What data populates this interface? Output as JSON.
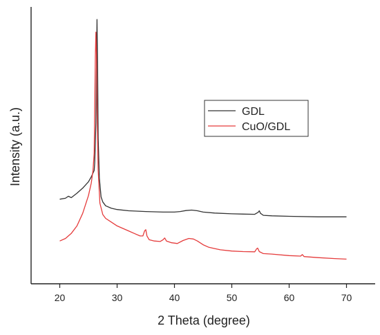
{
  "chart_data": {
    "type": "line",
    "title": "",
    "xlabel": "2 Theta (degree)",
    "ylabel": "Intensity (a.u.)",
    "xlim": [
      15,
      75
    ],
    "ylim": [
      0,
      1.1
    ],
    "x_ticks": [
      20,
      30,
      40,
      50,
      60,
      70
    ],
    "x_tick_labels": [
      "20",
      "30",
      "40",
      "50",
      "60",
      "70"
    ],
    "y_tick_labels_shown": false,
    "grid": false,
    "legend_position": "upper-right (inside plot)",
    "series": [
      {
        "name": "GDL",
        "color": "#333333",
        "points": [
          [
            20.0,
            0.336
          ],
          [
            21.0,
            0.34
          ],
          [
            21.5,
            0.348
          ],
          [
            22.0,
            0.342
          ],
          [
            23.0,
            0.36
          ],
          [
            24.0,
            0.38
          ],
          [
            25.0,
            0.405
          ],
          [
            25.5,
            0.425
          ],
          [
            26.0,
            0.45
          ],
          [
            26.1,
            0.48
          ],
          [
            26.3,
            0.64
          ],
          [
            26.4,
            0.85
          ],
          [
            26.5,
            1.05
          ],
          [
            26.6,
            0.85
          ],
          [
            26.7,
            0.58
          ],
          [
            26.9,
            0.42
          ],
          [
            27.2,
            0.345
          ],
          [
            27.5,
            0.325
          ],
          [
            28.0,
            0.31
          ],
          [
            29.0,
            0.3
          ],
          [
            30.0,
            0.295
          ],
          [
            32.0,
            0.29
          ],
          [
            35.0,
            0.287
          ],
          [
            38.0,
            0.285
          ],
          [
            40.0,
            0.285
          ],
          [
            41.0,
            0.287
          ],
          [
            42.0,
            0.291
          ],
          [
            43.0,
            0.293
          ],
          [
            44.0,
            0.29
          ],
          [
            45.0,
            0.285
          ],
          [
            47.0,
            0.281
          ],
          [
            50.0,
            0.278
          ],
          [
            52.0,
            0.277
          ],
          [
            54.0,
            0.276
          ],
          [
            54.6,
            0.284
          ],
          [
            54.8,
            0.29
          ],
          [
            55.0,
            0.28
          ],
          [
            55.5,
            0.272
          ],
          [
            57.0,
            0.27
          ],
          [
            60.0,
            0.268
          ],
          [
            65.0,
            0.266
          ],
          [
            70.0,
            0.266
          ]
        ]
      },
      {
        "name": "CuO/GDL",
        "color": "#e53b3b",
        "points": [
          [
            20.0,
            0.17
          ],
          [
            21.0,
            0.18
          ],
          [
            22.0,
            0.2
          ],
          [
            23.0,
            0.23
          ],
          [
            24.0,
            0.28
          ],
          [
            25.0,
            0.35
          ],
          [
            25.5,
            0.4
          ],
          [
            25.8,
            0.45
          ],
          [
            26.0,
            0.52
          ],
          [
            26.1,
            0.7
          ],
          [
            26.2,
            0.9
          ],
          [
            26.3,
            1.0
          ],
          [
            26.4,
            0.92
          ],
          [
            26.5,
            0.7
          ],
          [
            26.7,
            0.45
          ],
          [
            27.0,
            0.32
          ],
          [
            27.5,
            0.275
          ],
          [
            28.0,
            0.26
          ],
          [
            29.0,
            0.245
          ],
          [
            30.0,
            0.23
          ],
          [
            31.0,
            0.22
          ],
          [
            32.0,
            0.21
          ],
          [
            33.0,
            0.2
          ],
          [
            34.0,
            0.19
          ],
          [
            34.5,
            0.19
          ],
          [
            34.8,
            0.21
          ],
          [
            35.0,
            0.215
          ],
          [
            35.2,
            0.19
          ],
          [
            35.6,
            0.175
          ],
          [
            36.5,
            0.17
          ],
          [
            37.5,
            0.168
          ],
          [
            38.0,
            0.175
          ],
          [
            38.3,
            0.182
          ],
          [
            38.6,
            0.17
          ],
          [
            39.5,
            0.163
          ],
          [
            40.5,
            0.16
          ],
          [
            41.5,
            0.172
          ],
          [
            42.5,
            0.18
          ],
          [
            43.3,
            0.178
          ],
          [
            44.0,
            0.17
          ],
          [
            45.0,
            0.155
          ],
          [
            46.0,
            0.145
          ],
          [
            47.0,
            0.14
          ],
          [
            48.0,
            0.135
          ],
          [
            50.0,
            0.13
          ],
          [
            52.0,
            0.128
          ],
          [
            54.0,
            0.127
          ],
          [
            54.3,
            0.138
          ],
          [
            54.5,
            0.142
          ],
          [
            54.8,
            0.128
          ],
          [
            55.5,
            0.12
          ],
          [
            57.0,
            0.118
          ],
          [
            60.0,
            0.112
          ],
          [
            62.0,
            0.11
          ],
          [
            62.3,
            0.116
          ],
          [
            62.6,
            0.108
          ],
          [
            65.0,
            0.104
          ],
          [
            68.0,
            0.1
          ],
          [
            70.0,
            0.098
          ]
        ]
      }
    ]
  }
}
